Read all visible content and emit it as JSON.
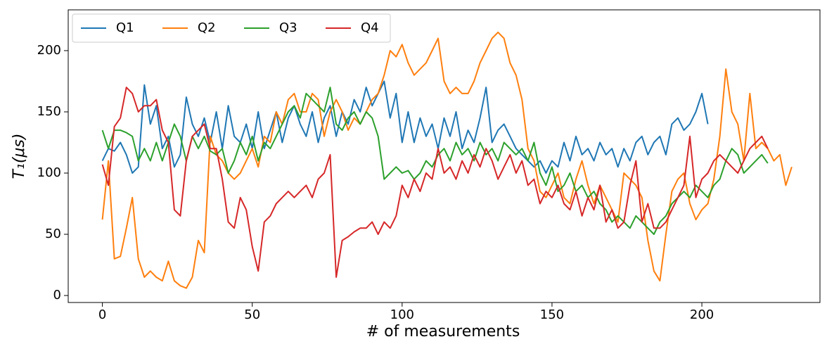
{
  "chart_data": {
    "type": "line",
    "x_label": "# of measurements",
    "y_label": "T₁(μs)",
    "xlim": [
      -11.4,
      239.4
    ],
    "ylim": [
      -5.7,
      233.3
    ],
    "xticks": [
      0,
      50,
      100,
      150,
      200
    ],
    "yticks": [
      0,
      50,
      100,
      150,
      200
    ],
    "legend": "upper left",
    "grid": false,
    "x": [
      0,
      2,
      4,
      6,
      8,
      10,
      12,
      14,
      16,
      18,
      20,
      22,
      24,
      26,
      28,
      30,
      32,
      34,
      36,
      38,
      40,
      42,
      44,
      46,
      48,
      50,
      52,
      54,
      56,
      58,
      60,
      62,
      64,
      66,
      68,
      70,
      72,
      74,
      76,
      78,
      80,
      82,
      84,
      86,
      88,
      90,
      92,
      94,
      96,
      98,
      100,
      102,
      104,
      106,
      108,
      110,
      112,
      114,
      116,
      118,
      120,
      122,
      124,
      126,
      128,
      130,
      132,
      134,
      136,
      138,
      140,
      142,
      144,
      146,
      148,
      150,
      152,
      154,
      156,
      158,
      160,
      162,
      164,
      166,
      168,
      170,
      172,
      174,
      176,
      178,
      180,
      182,
      184,
      186,
      188,
      190,
      192,
      194,
      196,
      198,
      200,
      202,
      204,
      206,
      208,
      210,
      212,
      214,
      216,
      218,
      220,
      222,
      224,
      226,
      228,
      230
    ],
    "series": [
      {
        "name": "Q1",
        "color": "#1f77b4",
        "values": [
          110,
          120,
          118,
          125,
          115,
          100,
          105,
          172,
          140,
          155,
          120,
          130,
          105,
          115,
          162,
          140,
          130,
          145,
          125,
          150,
          120,
          155,
          130,
          125,
          140,
          120,
          150,
          120,
          135,
          150,
          125,
          145,
          155,
          140,
          130,
          150,
          125,
          145,
          155,
          130,
          150,
          140,
          160,
          150,
          170,
          155,
          165,
          175,
          145,
          165,
          125,
          150,
          125,
          145,
          130,
          140,
          120,
          145,
          130,
          150,
          120,
          135,
          125,
          145,
          170,
          125,
          135,
          140,
          130,
          120,
          115,
          110,
          105,
          110,
          100,
          110,
          105,
          125,
          110,
          130,
          115,
          120,
          110,
          125,
          115,
          120,
          105,
          120,
          110,
          125,
          130,
          115,
          125,
          130,
          115,
          140,
          145,
          135,
          140,
          150,
          165,
          140,
          null,
          null,
          null,
          null,
          null,
          null,
          null,
          null,
          null,
          null,
          null,
          null,
          null,
          null
        ]
      },
      {
        "name": "Q2",
        "color": "#ff7f0e",
        "values": [
          62,
          110,
          30,
          32,
          55,
          80,
          30,
          15,
          20,
          15,
          12,
          28,
          12,
          8,
          6,
          15,
          45,
          35,
          130,
          115,
          110,
          100,
          95,
          100,
          110,
          120,
          105,
          130,
          125,
          150,
          140,
          160,
          165,
          150,
          150,
          165,
          160,
          130,
          150,
          160,
          150,
          135,
          145,
          140,
          150,
          160,
          165,
          180,
          200,
          195,
          205,
          190,
          180,
          185,
          190,
          200,
          210,
          175,
          165,
          170,
          165,
          165,
          175,
          190,
          200,
          210,
          215,
          210,
          190,
          180,
          160,
          120,
          110,
          85,
          80,
          90,
          100,
          80,
          75,
          95,
          110,
          90,
          75,
          90,
          80,
          70,
          60,
          100,
          95,
          90,
          80,
          45,
          20,
          12,
          50,
          85,
          95,
          100,
          75,
          62,
          70,
          75,
          95,
          130,
          185,
          150,
          140,
          110,
          165,
          120,
          125,
          120,
          110,
          115,
          90,
          105
        ]
      },
      {
        "name": "Q3",
        "color": "#2ca02c",
        "values": [
          135,
          120,
          135,
          135,
          133,
          130,
          110,
          120,
          110,
          125,
          110,
          125,
          140,
          130,
          110,
          130,
          120,
          130,
          118,
          115,
          120,
          100,
          110,
          125,
          115,
          130,
          110,
          125,
          120,
          130,
          140,
          150,
          155,
          145,
          165,
          160,
          155,
          150,
          170,
          140,
          135,
          145,
          150,
          140,
          150,
          145,
          130,
          95,
          100,
          105,
          100,
          102,
          95,
          100,
          110,
          105,
          115,
          120,
          110,
          125,
          115,
          120,
          110,
          125,
          115,
          120,
          110,
          125,
          120,
          115,
          120,
          110,
          125,
          100,
          90,
          105,
          85,
          90,
          100,
          85,
          90,
          80,
          85,
          75,
          70,
          60,
          65,
          60,
          55,
          65,
          60,
          55,
          50,
          60,
          65,
          75,
          80,
          85,
          80,
          90,
          85,
          80,
          90,
          95,
          110,
          120,
          115,
          100,
          105,
          110,
          115,
          108,
          null,
          null,
          null,
          null
        ]
      },
      {
        "name": "Q4",
        "color": "#d62728",
        "values": [
          107,
          90,
          138,
          145,
          170,
          165,
          150,
          155,
          155,
          160,
          135,
          125,
          70,
          65,
          110,
          130,
          135,
          140,
          120,
          120,
          95,
          60,
          55,
          80,
          70,
          40,
          20,
          60,
          65,
          75,
          80,
          85,
          80,
          85,
          90,
          80,
          95,
          100,
          115,
          15,
          45,
          48,
          52,
          55,
          55,
          60,
          50,
          60,
          55,
          65,
          90,
          80,
          95,
          85,
          100,
          95,
          120,
          100,
          105,
          95,
          110,
          100,
          115,
          105,
          120,
          110,
          95,
          105,
          115,
          100,
          110,
          90,
          95,
          75,
          85,
          80,
          90,
          75,
          70,
          85,
          65,
          80,
          70,
          90,
          60,
          70,
          55,
          60,
          90,
          110,
          60,
          75,
          55,
          55,
          60,
          70,
          80,
          90,
          130,
          80,
          95,
          100,
          110,
          115,
          110,
          105,
          100,
          110,
          120,
          125,
          130,
          120,
          null,
          null,
          null,
          null
        ]
      }
    ]
  }
}
